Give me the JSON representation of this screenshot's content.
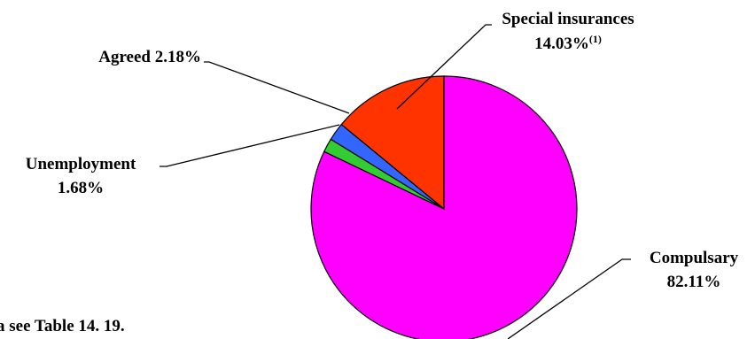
{
  "chart_data": {
    "type": "pie",
    "slices": [
      {
        "name": "Compulsary",
        "label_line1": "Compulsary",
        "label_line2": "82.11%",
        "value": 82.11,
        "color": "#ff00ff"
      },
      {
        "name": "Unemployment",
        "label_line1": "Unemployment",
        "label_line2": "1.68%",
        "value": 1.68,
        "color": "#33cc33"
      },
      {
        "name": "Agreed",
        "label_line1": "Agreed 2.18%",
        "label_line2": "",
        "value": 2.18,
        "color": "#3366ff"
      },
      {
        "name": "Special insurances",
        "label_line1": "Special insurances",
        "label_line2": "14.03%",
        "label_sup": "(1)",
        "value": 14.03,
        "color": "#ff3300"
      }
    ],
    "footnote": "a see Table 14. 19."
  }
}
